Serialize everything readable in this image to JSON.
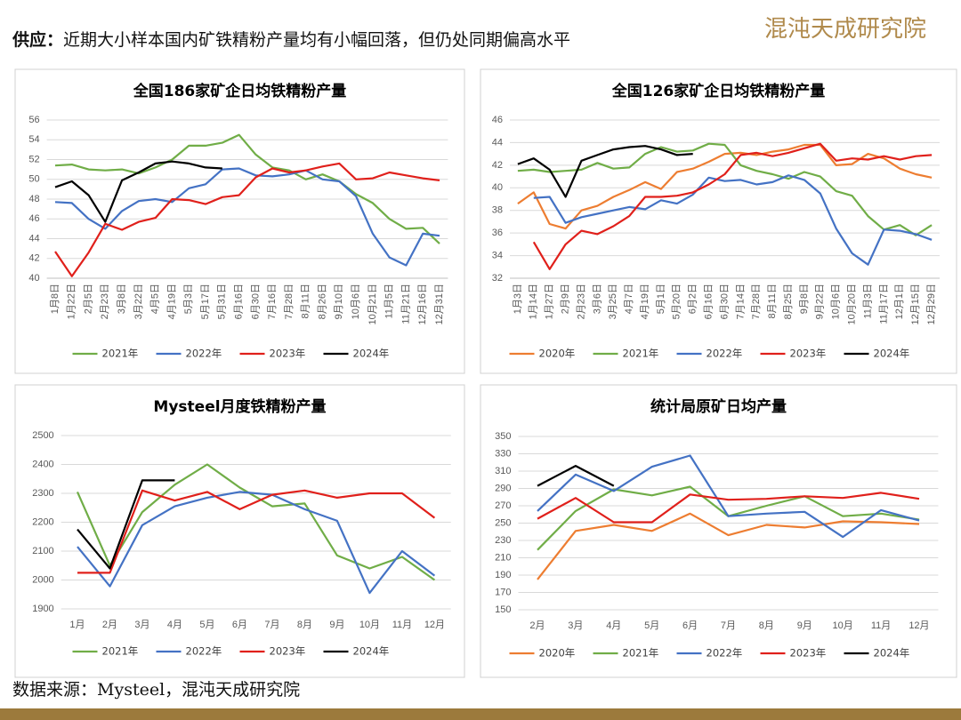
{
  "header": {
    "label": "供应：",
    "text": "近期大小样本国内矿铁精粉产量均有小幅回落，但仍处同期偏高水平",
    "logo": "混沌天成研究院"
  },
  "source": "数据来源：Mysteel，混沌天成研究院",
  "chart_data": [
    {
      "type": "line",
      "title": "全国186家矿企日均铁精粉产量",
      "categories": [
        "1月8日",
        "1月22日",
        "2月5日",
        "2月23日",
        "3月8日",
        "3月22日",
        "4月5日",
        "4月19日",
        "5月3日",
        "5月17日",
        "5月31日",
        "6月16日",
        "6月30日",
        "7月16日",
        "7月28日",
        "8月11日",
        "8月26日",
        "9月10日",
        "10月6日",
        "10月21日",
        "11月5日",
        "11月21日",
        "12月16日",
        "12月31日"
      ],
      "series": [
        {
          "name": "2021年",
          "color": "#70ad47",
          "values": [
            51.4,
            51.5,
            51.0,
            50.9,
            51.0,
            50.6,
            51.2,
            52.0,
            53.4,
            53.4,
            53.7,
            54.5,
            52.5,
            51.2,
            50.9,
            50.0,
            50.5,
            49.8,
            48.5,
            47.6,
            46.0,
            45.0,
            45.1,
            43.5
          ]
        },
        {
          "name": "2022年",
          "color": "#4472c4",
          "values": [
            47.7,
            47.6,
            46.0,
            45.0,
            46.8,
            47.8,
            48.0,
            47.7,
            49.1,
            49.5,
            51.0,
            51.1,
            50.4,
            50.3,
            50.5,
            50.9,
            50.0,
            49.8,
            48.3,
            44.5,
            42.1,
            41.3,
            44.5,
            44.3
          ]
        },
        {
          "name": "2023年",
          "color": "#e0201b",
          "values": [
            42.7,
            40.2,
            42.6,
            45.5,
            44.9,
            45.7,
            46.1,
            48.0,
            47.9,
            47.5,
            48.2,
            48.4,
            50.2,
            51.1,
            50.7,
            50.9,
            51.3,
            51.6,
            50.0,
            50.1,
            50.7,
            50.4,
            50.1,
            49.9
          ]
        },
        {
          "name": "2024年",
          "color": "#000000",
          "values": [
            49.2,
            49.8,
            48.4,
            45.7,
            49.9,
            50.7,
            51.6,
            51.8,
            51.6,
            51.2,
            51.1,
            null,
            null,
            null,
            null,
            null,
            null,
            null,
            null,
            null,
            null,
            null,
            null,
            null
          ]
        }
      ],
      "ylim": [
        40,
        56
      ],
      "yticks": [
        40,
        42,
        44,
        46,
        48,
        50,
        52,
        54,
        56
      ],
      "grid": true,
      "legend": "bottom"
    },
    {
      "type": "line",
      "title": "全国126家矿企日均铁精粉产量",
      "categories": [
        "1月3日",
        "1月14日",
        "1月27日",
        "2月9日",
        "2月23日",
        "3月6日",
        "3月25日",
        "4月7日",
        "4月19日",
        "5月1日",
        "5月20日",
        "6月2日",
        "6月16日",
        "6月30日",
        "7月14日",
        "7月28日",
        "8月11日",
        "8月25日",
        "9月8日",
        "9月22日",
        "10月6日",
        "10月20日",
        "11月3日",
        "11月17日",
        "12月1日",
        "12月15日",
        "12月29日"
      ],
      "series": [
        {
          "name": "2020年",
          "color": "#ed7d31",
          "values": [
            38.6,
            39.6,
            36.8,
            36.4,
            38.0,
            38.4,
            39.2,
            39.8,
            40.5,
            39.9,
            41.4,
            41.7,
            42.3,
            43.0,
            43.1,
            42.9,
            43.2,
            43.4,
            43.8,
            43.8,
            42.0,
            42.1,
            43.0,
            42.6,
            41.7,
            41.2,
            40.9
          ]
        },
        {
          "name": "2021年",
          "color": "#70ad47",
          "values": [
            41.5,
            41.6,
            41.4,
            41.5,
            41.6,
            42.2,
            41.7,
            41.8,
            43.0,
            43.6,
            43.2,
            43.3,
            43.9,
            43.8,
            42.0,
            41.5,
            41.2,
            40.8,
            41.4,
            41.0,
            39.7,
            39.3,
            37.5,
            36.3,
            36.7,
            35.8,
            36.7
          ]
        },
        {
          "name": "2022年",
          "color": "#4472c4",
          "values": [
            null,
            39.1,
            39.2,
            36.9,
            37.4,
            37.7,
            38.0,
            38.3,
            38.1,
            38.9,
            38.6,
            39.4,
            40.9,
            40.6,
            40.7,
            40.3,
            40.5,
            41.1,
            40.7,
            39.5,
            36.4,
            34.2,
            33.2,
            36.3,
            36.2,
            35.9,
            35.4
          ]
        },
        {
          "name": "2023年",
          "color": "#e0201b",
          "values": [
            null,
            35.2,
            32.8,
            35.0,
            36.2,
            35.9,
            36.6,
            37.5,
            39.2,
            39.2,
            39.3,
            39.6,
            40.3,
            41.2,
            42.9,
            43.1,
            42.8,
            43.1,
            43.5,
            43.9,
            42.4,
            42.6,
            42.5,
            42.8,
            42.5,
            42.8,
            42.9
          ]
        },
        {
          "name": "2024年",
          "color": "#000000",
          "values": [
            42.1,
            42.6,
            41.6,
            39.2,
            42.4,
            42.9,
            43.4,
            43.6,
            43.7,
            43.4,
            42.9,
            43.0,
            null,
            null,
            null,
            null,
            null,
            null,
            null,
            null,
            null,
            null,
            null,
            null,
            null,
            null,
            null
          ]
        }
      ],
      "ylim": [
        32,
        46
      ],
      "yticks": [
        32,
        34,
        36,
        38,
        40,
        42,
        44,
        46
      ],
      "grid": true,
      "legend": "bottom"
    },
    {
      "type": "line",
      "title": "Mysteel月度铁精粉产量",
      "categories": [
        "1月",
        "2月",
        "3月",
        "4月",
        "5月",
        "6月",
        "7月",
        "8月",
        "9月",
        "10月",
        "11月",
        "12月"
      ],
      "series": [
        {
          "name": "2021年",
          "color": "#70ad47",
          "values": [
            2305,
            2050,
            2235,
            2330,
            2400,
            2320,
            2255,
            2265,
            2085,
            2040,
            2080,
            2000
          ]
        },
        {
          "name": "2022年",
          "color": "#4472c4",
          "values": [
            2115,
            1978,
            2190,
            2255,
            2285,
            2305,
            2295,
            2245,
            2205,
            1955,
            2100,
            2015
          ]
        },
        {
          "name": "2023年",
          "color": "#e0201b",
          "values": [
            2025,
            2025,
            2310,
            2275,
            2305,
            2245,
            2295,
            2310,
            2285,
            2300,
            2300,
            2215
          ]
        },
        {
          "name": "2024年",
          "color": "#000000",
          "values": [
            2175,
            2040,
            2345,
            2345,
            null,
            null,
            null,
            null,
            null,
            null,
            null,
            null
          ]
        }
      ],
      "ylim": [
        1900,
        2500
      ],
      "yticks": [
        1900,
        2000,
        2100,
        2200,
        2300,
        2400,
        2500
      ],
      "grid": true,
      "legend": "bottom"
    },
    {
      "type": "line",
      "title": "统计局原矿日均产量",
      "categories": [
        "2月",
        "3月",
        "4月",
        "5月",
        "6月",
        "7月",
        "8月",
        "9月",
        "10月",
        "11月",
        "12月"
      ],
      "series": [
        {
          "name": "2020年",
          "color": "#ed7d31",
          "values": [
            185,
            241,
            248,
            241,
            261,
            236,
            248,
            245,
            252,
            251,
            249
          ]
        },
        {
          "name": "2021年",
          "color": "#70ad47",
          "values": [
            219,
            264,
            289,
            282,
            292,
            258,
            270,
            281,
            258,
            261,
            254
          ]
        },
        {
          "name": "2022年",
          "color": "#4472c4",
          "values": [
            264,
            306,
            287,
            315,
            328,
            258,
            261,
            263,
            234,
            265,
            253
          ]
        },
        {
          "name": "2023年",
          "color": "#e0201b",
          "values": [
            255,
            279,
            251,
            251,
            283,
            277,
            278,
            281,
            279,
            285,
            278
          ]
        },
        {
          "name": "2024年",
          "color": "#000000",
          "values": [
            293,
            316,
            293,
            null,
            null,
            null,
            null,
            null,
            null,
            null,
            null
          ]
        }
      ],
      "ylim": [
        150,
        350
      ],
      "yticks": [
        150,
        170,
        190,
        210,
        230,
        250,
        270,
        290,
        310,
        330,
        350
      ],
      "grid": true,
      "legend": "bottom"
    }
  ]
}
